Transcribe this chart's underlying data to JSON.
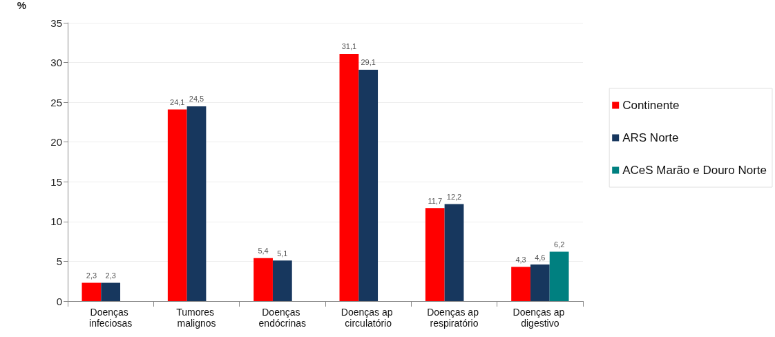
{
  "chart_data": {
    "type": "bar",
    "ylabel": "%",
    "categories": [
      "Doenças infeciosas",
      "Tumores malignos",
      "Doenças endócrinas",
      "Doenças ap circulatório",
      "Doenças ap respiratório",
      "Doenças ap digestivo"
    ],
    "series": [
      {
        "name": "Continente",
        "color": "#ff0000",
        "values": [
          2.3,
          24.1,
          5.4,
          31.1,
          11.7,
          4.3
        ],
        "value_labels": [
          "2,3",
          "24,1",
          "5,4",
          "31,1",
          "11,7",
          "4,3"
        ]
      },
      {
        "name": "ARS Norte",
        "color": "#17375e",
        "values": [
          2.3,
          24.5,
          5.1,
          29.1,
          12.2,
          4.6
        ],
        "value_labels": [
          "2,3",
          "24,5",
          "5,1",
          "29,1",
          "12,2",
          "4,6"
        ]
      },
      {
        "name": "ACeS Marão e Douro Norte",
        "color": "#008080",
        "values": [
          null,
          null,
          null,
          null,
          null,
          6.2
        ],
        "value_labels": [
          null,
          null,
          null,
          null,
          null,
          "6,2"
        ]
      }
    ],
    "ylim": [
      0,
      35
    ],
    "yticks": [
      0,
      5,
      10,
      15,
      20,
      25,
      30,
      35
    ],
    "grid": "y",
    "legend": "right"
  }
}
